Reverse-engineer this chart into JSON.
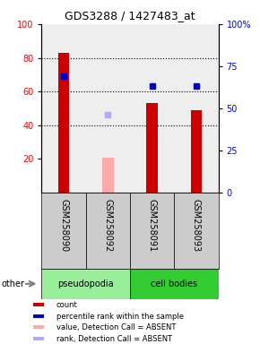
{
  "title": "GDS3288 / 1427483_at",
  "samples": [
    "GSM258090",
    "GSM258092",
    "GSM258091",
    "GSM258093"
  ],
  "groups": [
    "pseudopodia",
    "pseudopodia",
    "cell bodies",
    "cell bodies"
  ],
  "bar_values": [
    83,
    21,
    53,
    49
  ],
  "bar_absent": [
    false,
    true,
    false,
    false
  ],
  "rank_values": [
    69,
    46,
    63,
    63
  ],
  "rank_absent": [
    false,
    true,
    false,
    false
  ],
  "bar_color": "#cc0000",
  "bar_absent_color": "#ffaaaa",
  "rank_color": "#0000cc",
  "rank_absent_color": "#aaaaff",
  "ylim_left": [
    0,
    100
  ],
  "ylim_right": [
    0,
    100
  ],
  "yticks_left": [
    20,
    40,
    60,
    80,
    100
  ],
  "ytick_right_labels": [
    "0",
    "25",
    "50",
    "75",
    "100%"
  ],
  "ytick_right_vals": [
    0,
    25,
    50,
    75,
    100
  ],
  "group_color_pseudopodia": "#99ee99",
  "group_color_cell_bodies": "#33cc33",
  "sample_box_color": "#cccccc",
  "background_color": "#ffffff",
  "plot_bg_color": "#eeeeee",
  "legend_items": [
    {
      "label": "count",
      "color": "#cc0000"
    },
    {
      "label": "percentile rank within the sample",
      "color": "#0000cc"
    },
    {
      "label": "value, Detection Call = ABSENT",
      "color": "#ffaaaa"
    },
    {
      "label": "rank, Detection Call = ABSENT",
      "color": "#aaaaff"
    }
  ]
}
